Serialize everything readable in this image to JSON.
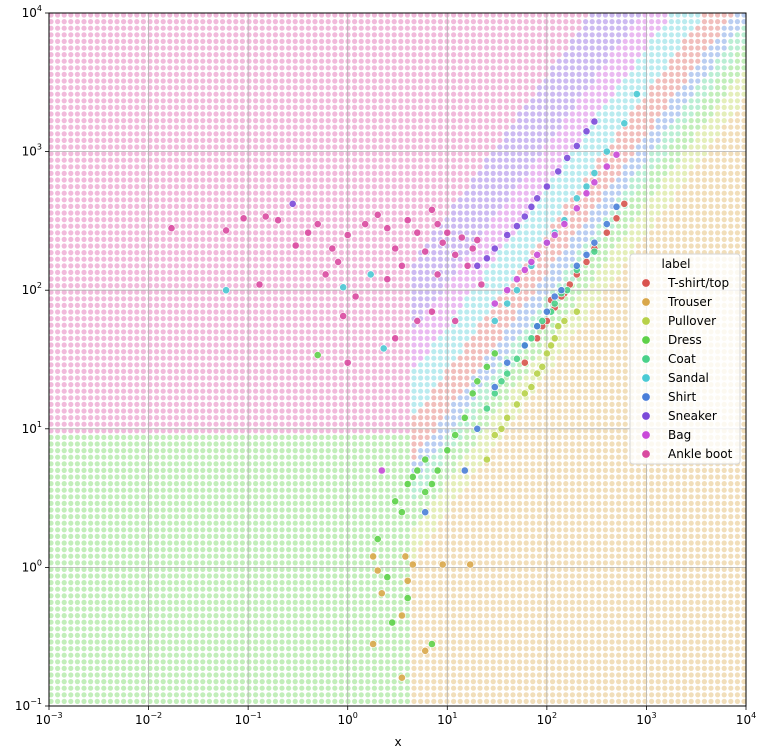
{
  "chart_data": {
    "type": "scatter",
    "xlabel": "x",
    "ylabel": "",
    "xscale": "log",
    "yscale": "log",
    "xlim": [
      0.001,
      10000
    ],
    "ylim": [
      0.1,
      10000
    ],
    "x_ticks": [
      {
        "value": 0.001,
        "base": "10",
        "exp": "−3"
      },
      {
        "value": 0.01,
        "base": "10",
        "exp": "−2"
      },
      {
        "value": 0.1,
        "base": "10",
        "exp": "−1"
      },
      {
        "value": 1,
        "base": "10",
        "exp": "0"
      },
      {
        "value": 10,
        "base": "10",
        "exp": "1"
      },
      {
        "value": 100,
        "base": "10",
        "exp": "2"
      },
      {
        "value": 1000,
        "base": "10",
        "exp": "3"
      },
      {
        "value": 10000,
        "base": "10",
        "exp": "4"
      }
    ],
    "y_ticks": [
      {
        "value": 0.1,
        "base": "10",
        "exp": "−1"
      },
      {
        "value": 1,
        "base": "10",
        "exp": "0"
      },
      {
        "value": 10,
        "base": "10",
        "exp": "1"
      },
      {
        "value": 100,
        "base": "10",
        "exp": "2"
      },
      {
        "value": 1000,
        "base": "10",
        "exp": "3"
      },
      {
        "value": 10000,
        "base": "10",
        "exp": "4"
      }
    ],
    "grid": true,
    "background": "decision regions of a classifier shown as a dense grid of class-colored dots",
    "legend": {
      "title": "label",
      "placement": "right",
      "entries": [
        {
          "label": "T-shirt/top",
          "color": "#d9534f"
        },
        {
          "label": "Trouser",
          "color": "#d9a74a"
        },
        {
          "label": "Pullover",
          "color": "#b7d14a"
        },
        {
          "label": "Dress",
          "color": "#5ed14a"
        },
        {
          "label": "Coat",
          "color": "#4ad18a"
        },
        {
          "label": "Sandal",
          "color": "#4acad4"
        },
        {
          "label": "Shirt",
          "color": "#4a7ed9"
        },
        {
          "label": "Sneaker",
          "color": "#7b4ad9"
        },
        {
          "label": "Bag",
          "color": "#c94ad9"
        },
        {
          "label": "Ankle boot",
          "color": "#d94aa0"
        }
      ]
    },
    "series": [
      {
        "name": "T-shirt/top",
        "color": "#d9534f",
        "points": [
          [
            60,
            30
          ],
          [
            80,
            45
          ],
          [
            100,
            60
          ],
          [
            120,
            75
          ],
          [
            150,
            95
          ],
          [
            200,
            130
          ],
          [
            250,
            160
          ],
          [
            300,
            200
          ],
          [
            400,
            260
          ],
          [
            500,
            330
          ],
          [
            600,
            420
          ],
          [
            110,
            85
          ],
          [
            170,
            110
          ],
          [
            90,
            55
          ],
          [
            140,
            90
          ]
        ]
      },
      {
        "name": "Trouser",
        "color": "#d9a74a",
        "points": [
          [
            1.8,
            1.2
          ],
          [
            2,
            0.95
          ],
          [
            2.2,
            0.65
          ],
          [
            1.8,
            0.28
          ],
          [
            3.5,
            0.45
          ],
          [
            3.8,
            1.2
          ],
          [
            4,
            0.8
          ],
          [
            6,
            0.25
          ],
          [
            3.5,
            0.16
          ],
          [
            4.5,
            1.05
          ],
          [
            17,
            1.05
          ],
          [
            9,
            1.05
          ]
        ]
      },
      {
        "name": "Pullover",
        "color": "#b7d14a",
        "points": [
          [
            40,
            12
          ],
          [
            60,
            18
          ],
          [
            80,
            25
          ],
          [
            100,
            35
          ],
          [
            120,
            45
          ],
          [
            150,
            60
          ],
          [
            30,
            9
          ],
          [
            50,
            15
          ],
          [
            70,
            20
          ],
          [
            90,
            28
          ],
          [
            110,
            40
          ],
          [
            25,
            6
          ],
          [
            35,
            10
          ],
          [
            130,
            55
          ],
          [
            200,
            70
          ]
        ]
      },
      {
        "name": "Dress",
        "color": "#5ed14a",
        "points": [
          [
            2,
            1.6
          ],
          [
            3,
            3
          ],
          [
            4,
            4
          ],
          [
            5,
            5
          ],
          [
            6,
            6
          ],
          [
            7,
            4
          ],
          [
            8,
            5
          ],
          [
            3.5,
            2.5
          ],
          [
            4.5,
            4.5
          ],
          [
            6,
            3.5
          ],
          [
            10,
            7
          ],
          [
            12,
            9
          ],
          [
            15,
            12
          ],
          [
            18,
            18
          ],
          [
            20,
            22
          ],
          [
            25,
            28
          ],
          [
            30,
            35
          ],
          [
            0.5,
            34
          ],
          [
            7,
            0.28
          ],
          [
            4,
            0.6
          ],
          [
            2.5,
            0.85
          ],
          [
            2.8,
            0.4
          ]
        ]
      },
      {
        "name": "Coat",
        "color": "#4ad18a",
        "points": [
          [
            30,
            18
          ],
          [
            40,
            25
          ],
          [
            50,
            32
          ],
          [
            70,
            45
          ],
          [
            90,
            60
          ],
          [
            120,
            80
          ],
          [
            160,
            100
          ],
          [
            200,
            140
          ],
          [
            300,
            190
          ],
          [
            25,
            14
          ],
          [
            60,
            40
          ],
          [
            35,
            22
          ],
          [
            80,
            55
          ],
          [
            110,
            70
          ],
          [
            140,
            95
          ]
        ]
      },
      {
        "name": "Sandal",
        "color": "#4acad4",
        "points": [
          [
            0.06,
            100
          ],
          [
            0.9,
            105
          ],
          [
            1.7,
            130
          ],
          [
            2.3,
            38
          ],
          [
            30,
            60
          ],
          [
            50,
            100
          ],
          [
            70,
            150
          ],
          [
            100,
            220
          ],
          [
            150,
            320
          ],
          [
            200,
            460
          ],
          [
            300,
            700
          ],
          [
            400,
            1000
          ],
          [
            600,
            1600
          ],
          [
            800,
            2600
          ],
          [
            40,
            80
          ],
          [
            120,
            260
          ],
          [
            250,
            560
          ]
        ]
      },
      {
        "name": "Shirt",
        "color": "#4a7ed9",
        "points": [
          [
            40,
            30
          ],
          [
            60,
            40
          ],
          [
            80,
            55
          ],
          [
            100,
            70
          ],
          [
            140,
            100
          ],
          [
            200,
            150
          ],
          [
            300,
            220
          ],
          [
            400,
            300
          ],
          [
            500,
            400
          ],
          [
            30,
            20
          ],
          [
            120,
            90
          ],
          [
            250,
            180
          ],
          [
            6,
            2.5
          ],
          [
            15,
            5
          ],
          [
            20,
            10
          ]
        ]
      },
      {
        "name": "Sneaker",
        "color": "#7b4ad9",
        "points": [
          [
            0.28,
            420
          ],
          [
            20,
            150
          ],
          [
            30,
            200
          ],
          [
            40,
            250
          ],
          [
            60,
            340
          ],
          [
            80,
            460
          ],
          [
            100,
            560
          ],
          [
            130,
            720
          ],
          [
            160,
            900
          ],
          [
            200,
            1100
          ],
          [
            250,
            1400
          ],
          [
            300,
            1650
          ],
          [
            25,
            170
          ],
          [
            50,
            290
          ],
          [
            70,
            400
          ]
        ]
      },
      {
        "name": "Bag",
        "color": "#c94ad9",
        "points": [
          [
            2.2,
            5
          ],
          [
            30,
            80
          ],
          [
            40,
            100
          ],
          [
            60,
            140
          ],
          [
            80,
            180
          ],
          [
            100,
            220
          ],
          [
            150,
            300
          ],
          [
            200,
            390
          ],
          [
            250,
            500
          ],
          [
            300,
            600
          ],
          [
            400,
            780
          ],
          [
            500,
            950
          ],
          [
            50,
            120
          ],
          [
            70,
            160
          ],
          [
            120,
            250
          ]
        ]
      },
      {
        "name": "Ankle boot",
        "color": "#d94aa0",
        "points": [
          [
            0.017,
            280
          ],
          [
            0.06,
            270
          ],
          [
            0.09,
            330
          ],
          [
            0.13,
            110
          ],
          [
            0.15,
            340
          ],
          [
            0.2,
            320
          ],
          [
            0.3,
            210
          ],
          [
            0.4,
            260
          ],
          [
            0.5,
            300
          ],
          [
            0.6,
            130
          ],
          [
            0.7,
            200
          ],
          [
            0.8,
            160
          ],
          [
            1,
            250
          ],
          [
            1.2,
            90
          ],
          [
            1.5,
            300
          ],
          [
            2,
            350
          ],
          [
            2.5,
            280
          ],
          [
            3,
            200
          ],
          [
            3.5,
            150
          ],
          [
            4,
            320
          ],
          [
            5,
            260
          ],
          [
            6,
            190
          ],
          [
            7,
            380
          ],
          [
            8,
            300
          ],
          [
            9,
            220
          ],
          [
            10,
            260
          ],
          [
            12,
            180
          ],
          [
            14,
            240
          ],
          [
            16,
            150
          ],
          [
            18,
            200
          ],
          [
            20,
            230
          ],
          [
            1,
            30
          ],
          [
            3,
            45
          ],
          [
            5,
            60
          ],
          [
            7,
            70
          ],
          [
            12,
            60
          ],
          [
            22,
            110
          ],
          [
            8,
            130
          ],
          [
            0.9,
            65
          ],
          [
            2.5,
            120
          ]
        ]
      }
    ]
  }
}
